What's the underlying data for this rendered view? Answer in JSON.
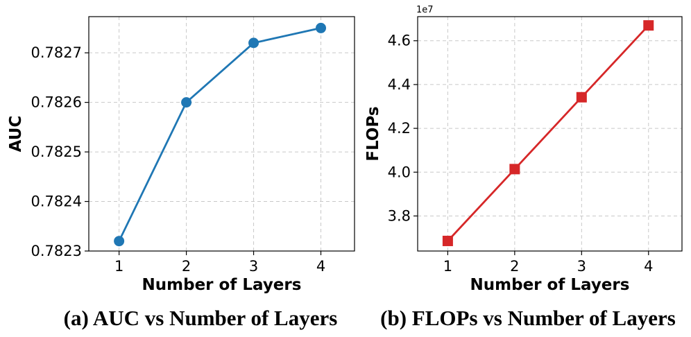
{
  "chart_data": [
    {
      "type": "line",
      "caption": "(a) AUC vs Number of Layers",
      "xlabel": "Number of Layers",
      "ylabel": "AUC",
      "x": [
        1,
        2,
        3,
        4
      ],
      "xticks": [
        "1",
        "2",
        "3",
        "4"
      ],
      "xlim": [
        0.55,
        4.5
      ],
      "ylim": [
        0.7823,
        0.782773
      ],
      "yticks": [
        0.7823,
        0.7824,
        0.7825,
        0.7826,
        0.7827
      ],
      "ytick_labels": [
        "0.7823",
        "0.7824",
        "0.7825",
        "0.7826",
        "0.7827"
      ],
      "y_offset_label": "",
      "grid": true,
      "series": [
        {
          "values": [
            0.78232,
            0.7826,
            0.78272,
            0.78275
          ],
          "color": "#1f77b4",
          "marker": "circle"
        }
      ]
    },
    {
      "type": "line",
      "caption": "(b) FLOPs vs Number of Layers",
      "xlabel": "Number of Layers",
      "ylabel": "FLOPs",
      "x": [
        1,
        2,
        3,
        4
      ],
      "xticks": [
        "1",
        "2",
        "3",
        "4"
      ],
      "xlim": [
        0.55,
        4.5
      ],
      "ylim": [
        3.64,
        4.71
      ],
      "yticks": [
        3.8,
        4.0,
        4.2,
        4.4,
        4.6
      ],
      "ytick_labels": [
        "3.8",
        "4.0",
        "4.2",
        "4.4",
        "4.6"
      ],
      "y_offset_label": "1e7",
      "grid": true,
      "series": [
        {
          "values": [
            3.686,
            4.014,
            4.342,
            4.67
          ],
          "color": "#d62728",
          "marker": "square"
        }
      ]
    }
  ]
}
